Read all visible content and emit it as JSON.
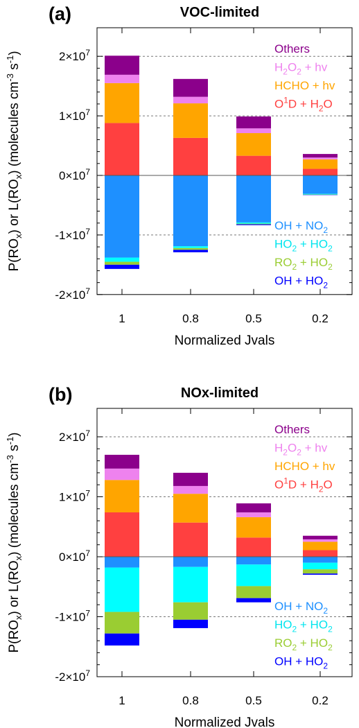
{
  "chart_data": [
    {
      "panel": "(a)",
      "type": "bar",
      "stacked": true,
      "title": "VOC-limited",
      "xlabel": "Normalized Jvals",
      "ylabel": "P(ROx) or L(ROx) (molecules cm-3 s-1)",
      "ylabel_parts": [
        "P(RO",
        "x",
        ") or L(RO",
        "x",
        ") (molecules cm",
        "-3",
        " s",
        "-1",
        ")"
      ],
      "categories": [
        "1",
        "0.8",
        "0.5",
        "0.2"
      ],
      "ylim": [
        -20000000,
        20000000
      ],
      "yticks": [
        -20000000,
        -10000000,
        0,
        10000000,
        20000000
      ],
      "ytick_labels": [
        {
          "mant": "-2",
          "exp": "7"
        },
        {
          "mant": "-1",
          "exp": "7"
        },
        {
          "mant": "0",
          "exp": "7"
        },
        {
          "mant": "1",
          "exp": "7"
        },
        {
          "mant": "2",
          "exp": "7"
        }
      ],
      "grid": "dashed horizontal",
      "production_series": [
        {
          "name": "O1D + H2O",
          "color": "#FF4040",
          "values": [
            8800000,
            6300000,
            3300000,
            1100000
          ]
        },
        {
          "name": "HCHO + hv",
          "color": "#FFA500",
          "values": [
            6700000,
            5800000,
            3800000,
            1600000
          ]
        },
        {
          "name": "H2O2 + hv",
          "color": "#EE82EE",
          "values": [
            1400000,
            1100000,
            800000,
            300000
          ]
        },
        {
          "name": "Others",
          "color": "#8B008B",
          "values": [
            3200000,
            3000000,
            2000000,
            600000
          ]
        }
      ],
      "loss_series": [
        {
          "name": "OH + NO2",
          "color": "#1E90FF",
          "values": [
            13800000,
            11900000,
            7900000,
            3100000
          ]
        },
        {
          "name": "HO2 + HO2",
          "color": "#00FFFF",
          "values": [
            700000,
            300000,
            200000,
            100000
          ]
        },
        {
          "name": "RO2 + HO2",
          "color": "#9ACD32",
          "values": [
            500000,
            300000,
            100000,
            50000
          ]
        },
        {
          "name": "OH + HO2",
          "color": "#0000FF",
          "values": [
            700000,
            400000,
            150000,
            50000
          ]
        }
      ]
    },
    {
      "panel": "(b)",
      "type": "bar",
      "stacked": true,
      "title": "NOx-limited",
      "xlabel": "Normalized Jvals",
      "ylabel": "P(ROx) or L(ROx) (molecules cm-3 s-1)",
      "ylabel_parts": [
        "P(RO",
        "x",
        ") or L(RO",
        "x",
        ") (molecules cm",
        "-3",
        " s",
        "-1",
        ")"
      ],
      "categories": [
        "1",
        "0.8",
        "0.5",
        "0.2"
      ],
      "ylim": [
        -20000000,
        20000000
      ],
      "yticks": [
        -20000000,
        -10000000,
        0,
        10000000,
        20000000
      ],
      "ytick_labels": [
        {
          "mant": "-2",
          "exp": "7"
        },
        {
          "mant": "-1",
          "exp": "7"
        },
        {
          "mant": "0",
          "exp": "7"
        },
        {
          "mant": "1",
          "exp": "7"
        },
        {
          "mant": "2",
          "exp": "7"
        }
      ],
      "grid": "dashed horizontal",
      "production_series": [
        {
          "name": "O1D + H2O",
          "color": "#FF4040",
          "values": [
            7400000,
            5700000,
            3200000,
            1100000
          ]
        },
        {
          "name": "HCHO + hv",
          "color": "#FFA500",
          "values": [
            5400000,
            4800000,
            3400000,
            1400000
          ]
        },
        {
          "name": "H2O2 + hv",
          "color": "#EE82EE",
          "values": [
            1900000,
            1300000,
            800000,
            400000
          ]
        },
        {
          "name": "Others",
          "color": "#8B008B",
          "values": [
            2300000,
            2200000,
            1500000,
            600000
          ]
        }
      ],
      "loss_series": [
        {
          "name": "OH + NO2",
          "color": "#1E90FF",
          "values": [
            1800000,
            1700000,
            1300000,
            1000000
          ]
        },
        {
          "name": "HO2 + HO2",
          "color": "#00FFFF",
          "values": [
            7400000,
            5900000,
            3600000,
            1100000
          ]
        },
        {
          "name": "RO2 + HO2",
          "color": "#9ACD32",
          "values": [
            3600000,
            2900000,
            2000000,
            700000
          ]
        },
        {
          "name": "OH + HO2",
          "color": "#0000FF",
          "values": [
            2000000,
            1400000,
            700000,
            200000
          ]
        }
      ]
    }
  ],
  "legend": {
    "production": [
      {
        "key": "others",
        "parts": [
          {
            "t": "Others",
            "s": "n"
          }
        ],
        "color": "#8B008B"
      },
      {
        "key": "h2o2",
        "parts": [
          {
            "t": "H",
            "s": "n"
          },
          {
            "t": "2",
            "s": "sub"
          },
          {
            "t": "O",
            "s": "n"
          },
          {
            "t": "2",
            "s": "sub"
          },
          {
            "t": " + hv",
            "s": "n"
          }
        ],
        "color": "#EE82EE"
      },
      {
        "key": "hcho",
        "parts": [
          {
            "t": "HCHO + hv",
            "s": "n"
          }
        ],
        "color": "#FFA500"
      },
      {
        "key": "o1d",
        "parts": [
          {
            "t": "O",
            "s": "n"
          },
          {
            "t": "1",
            "s": "sup"
          },
          {
            "t": "D + H",
            "s": "n"
          },
          {
            "t": "2",
            "s": "sub"
          },
          {
            "t": "O",
            "s": "n"
          }
        ],
        "color": "#FF4040"
      }
    ],
    "loss": [
      {
        "key": "ohno2",
        "parts": [
          {
            "t": "OH + NO",
            "s": "n"
          },
          {
            "t": "2",
            "s": "sub"
          }
        ],
        "color": "#1E90FF"
      },
      {
        "key": "ho2ho2",
        "parts": [
          {
            "t": "HO",
            "s": "n"
          },
          {
            "t": "2",
            "s": "sub"
          },
          {
            "t": " + HO",
            "s": "n"
          },
          {
            "t": "2",
            "s": "sub"
          }
        ],
        "color": "#00E5EE"
      },
      {
        "key": "ro2ho2",
        "parts": [
          {
            "t": "RO",
            "s": "n"
          },
          {
            "t": "2",
            "s": "sub"
          },
          {
            "t": " + HO",
            "s": "n"
          },
          {
            "t": "2",
            "s": "sub"
          }
        ],
        "color": "#9ACD32"
      },
      {
        "key": "ohho2",
        "parts": [
          {
            "t": "OH + HO",
            "s": "n"
          },
          {
            "t": "2",
            "s": "sub"
          }
        ],
        "color": "#0000FF"
      }
    ]
  }
}
